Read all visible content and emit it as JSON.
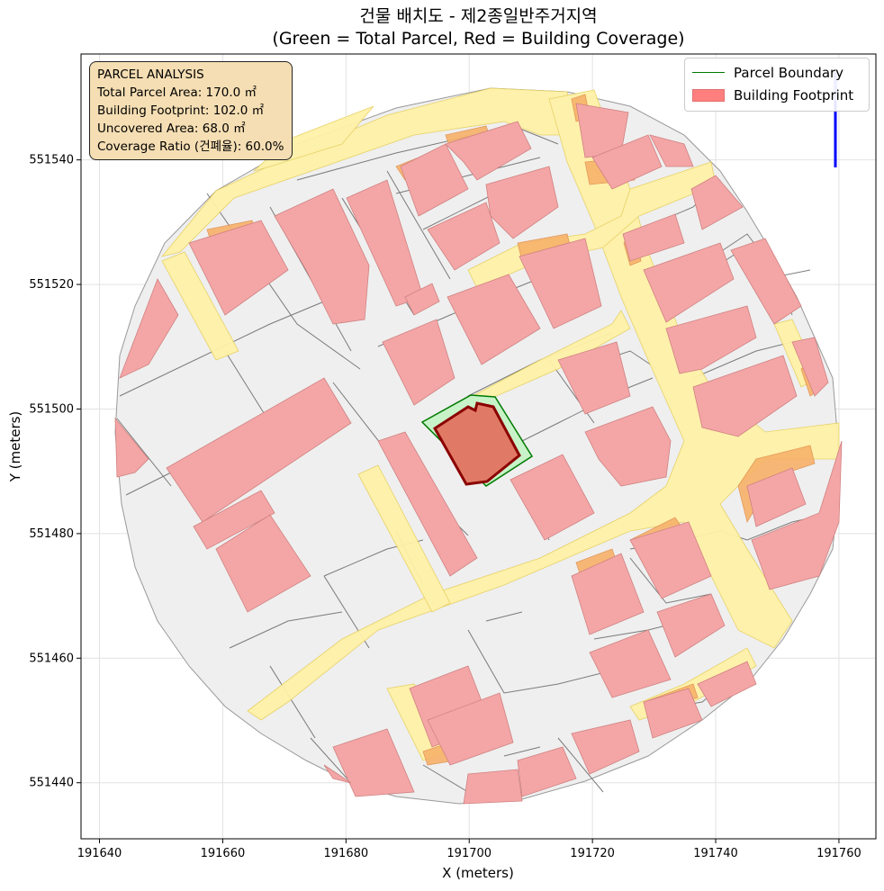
{
  "title": {
    "line1": "건물 배치도 - 제2종일반주거지역",
    "line2": "(Green = Total Parcel, Red = Building Coverage)"
  },
  "axes": {
    "xlabel": "X (meters)",
    "ylabel": "Y (meters)",
    "xticks": [
      "191640",
      "191660",
      "191680",
      "191700",
      "191720",
      "191740",
      "191760"
    ],
    "yticks": [
      "551440",
      "551460",
      "551480",
      "551500",
      "551520",
      "551540"
    ],
    "xlim": [
      191637,
      191766
    ],
    "ylim": [
      551431,
      551557
    ],
    "grid": true
  },
  "info_box": {
    "heading": "PARCEL ANALYSIS",
    "total_parcel_area": "Total Parcel Area: 170.0 ㎡",
    "building_footprint": "Building Footprint: 102.0 ㎡",
    "uncovered_area": "Uncovered Area: 68.0 ㎡",
    "coverage_ratio": "Coverage Ratio (건폐율): 60.0%"
  },
  "legend": {
    "items": [
      {
        "label": "Parcel Boundary",
        "kind": "line",
        "color": "#007a00"
      },
      {
        "label": "Building Footprint",
        "kind": "patch",
        "color": "#ff7f7f"
      }
    ],
    "placement": "top-right"
  },
  "colors": {
    "background_parcels": "#efefef",
    "roads": "#fff2a8",
    "buildings": "#f4a6a6",
    "annex_orange": "#f7b26a",
    "target_parcel_fill": "#c8f2c8",
    "target_parcel_edge": "#007a00",
    "target_building": "#e07a66",
    "target_building_edge": "#8b0000",
    "north_arrow": "#0000ff"
  }
}
